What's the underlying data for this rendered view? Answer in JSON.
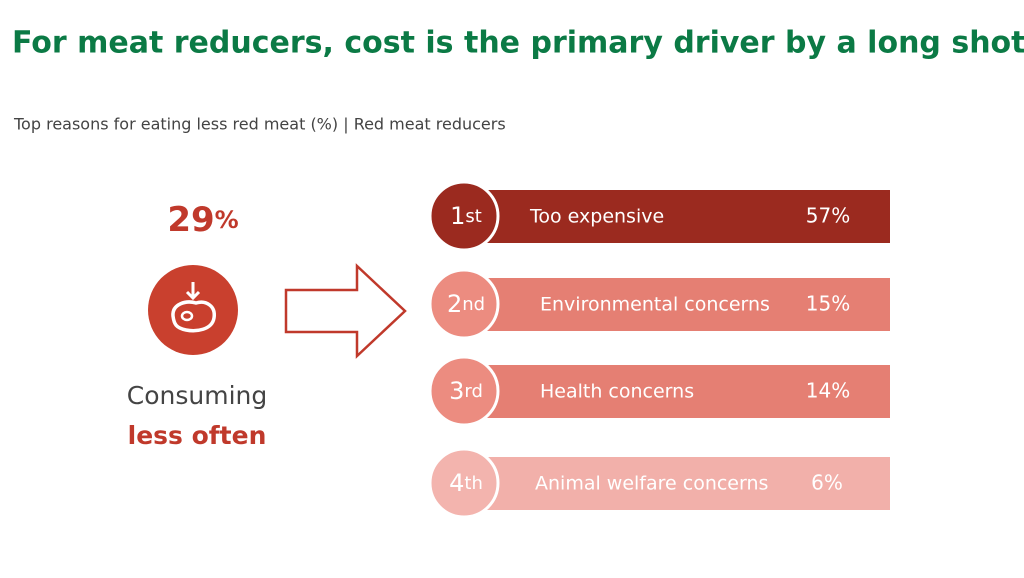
{
  "header": {
    "title": "For meat reducers, cost is the primary driver by a long shot",
    "subtitle": "Top reasons for eating less red meat (%) | Red meat reducers"
  },
  "stat": {
    "number": "29",
    "unit": "%",
    "line1": "Consuming",
    "line2": "less often"
  },
  "reasons": [
    {
      "rank": "1st",
      "label": "Too expensive",
      "value": "57%"
    },
    {
      "rank": "2nd",
      "label": "Environmental concerns",
      "value": "15%"
    },
    {
      "rank": "3rd",
      "label": "Health concerns",
      "value": "14%"
    },
    {
      "rank": "4th",
      "label": "Animal welfare concerns",
      "value": "6%"
    }
  ]
}
